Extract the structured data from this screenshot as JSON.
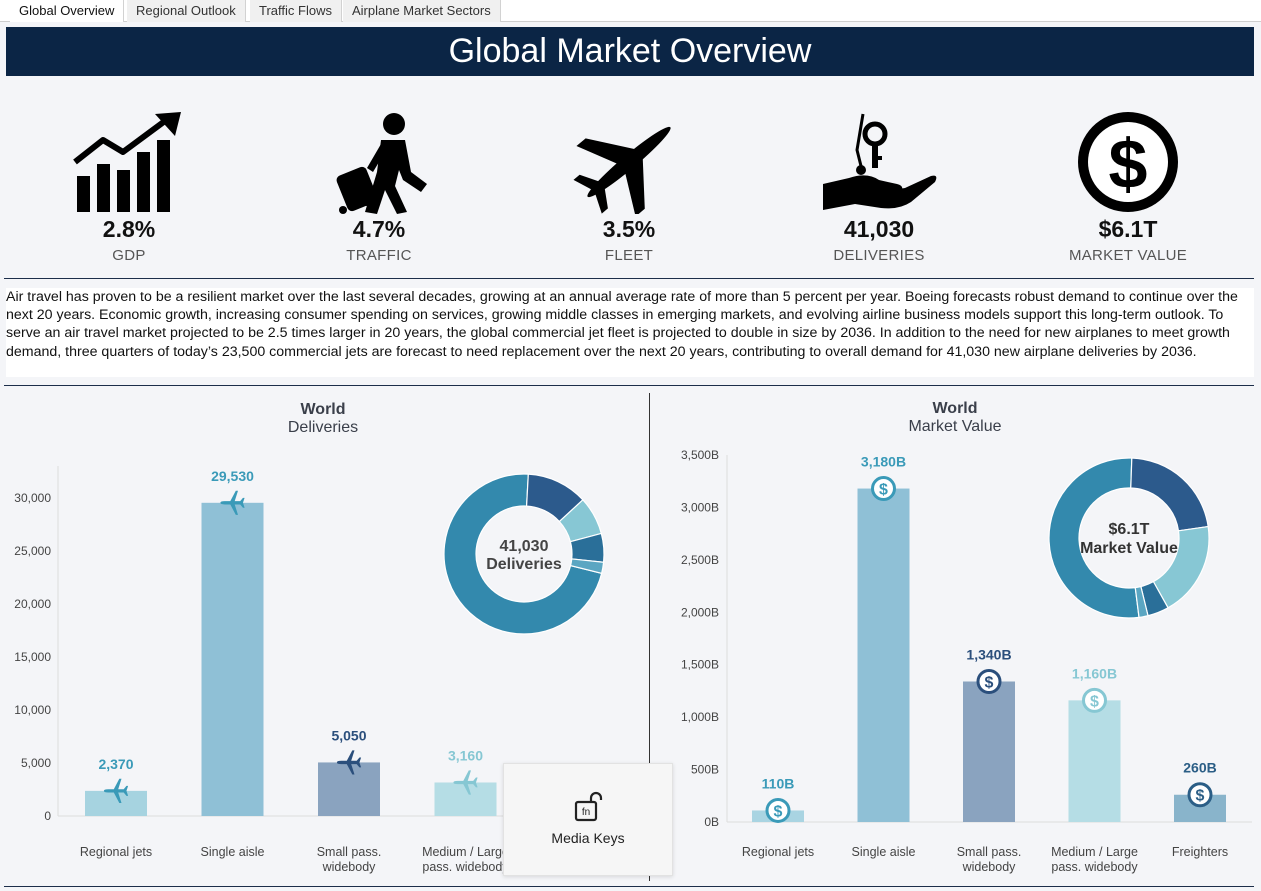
{
  "tabs": [
    "Global Overview",
    "Regional Outlook",
    "Traffic Flows",
    "Airplane Market Sectors"
  ],
  "header": {
    "title": "Global Market Overview"
  },
  "kpis": [
    {
      "icon": "bar-chart-growth-icon",
      "value": "2.8%",
      "label": "GDP"
    },
    {
      "icon": "traveler-luggage-icon",
      "value": "4.7%",
      "label": "TRAFFIC"
    },
    {
      "icon": "airplane-icon",
      "value": "3.5%",
      "label": "FLEET"
    },
    {
      "icon": "hand-key-icon",
      "value": "41,030",
      "label": "DELIVERIES"
    },
    {
      "icon": "dollar-icon",
      "value": "$6.1T",
      "label": "MARKET VALUE"
    }
  ],
  "summary": "Air travel has proven to be a resilient market over the last several decades, growing at an annual average rate of more than 5 percent per year. Boeing forecasts robust demand to continue over the next 20 years. Economic growth, increasing consumer spending on services, growing middle classes in emerging markets, and evolving airline business models support this long-term outlook. To serve an air travel market projected to be 2.5 times larger in 20 years, the global commercial jet fleet is projected to double in size by 2036. In addition to the need for new airplanes to meet growth demand, three quarters of today’s 23,500 commercial jets are forecast to need replacement over the next 20 years, contributing to overall demand for 41,030 new airplane deliveries by 2036.",
  "deliveries_chart": {
    "title": "World",
    "subtitle": "Deliveries",
    "donut_value": "41,030",
    "donut_label": "Deliveries"
  },
  "market_chart": {
    "title": "World",
    "subtitle": "Market Value",
    "donut_value": "$6.1T",
    "donut_label": "Market Value"
  },
  "popup": {
    "label": "Media Keys",
    "icon": "fn-lock-icon"
  },
  "chart_data": [
    {
      "type": "bar",
      "title": "World",
      "subtitle": "Deliveries",
      "categories": [
        "Regional jets",
        "Single aisle",
        "Small pass.|widebody",
        "Medium / Large|pass. widebody"
      ],
      "values": [
        2370,
        29530,
        5050,
        3160
      ],
      "value_labels": [
        "2,370",
        "29,530",
        "5,050",
        "3,160"
      ],
      "ylim": [
        0,
        33000
      ],
      "yticks": [
        0,
        5000,
        10000,
        15000,
        20000,
        25000,
        30000
      ],
      "ytick_labels": [
        "0",
        "5,000",
        "10,000",
        "15,000",
        "20,000",
        "25,000",
        "30,000"
      ],
      "colors": [
        "#a6d3e0",
        "#8fc0d6",
        "#8aa3bf",
        "#b5dde5"
      ],
      "label_colors": [
        "#3a9ab8",
        "#3a9ab8",
        "#2b4f7c",
        "#86c7d3"
      ],
      "grid": false
    },
    {
      "type": "pie",
      "center_label": "41,030 Deliveries",
      "values": [
        29530,
        5050,
        3160,
        2370,
        920
      ],
      "colors": [
        "#3389ad",
        "#2c5a8c",
        "#87c7d4",
        "#2a6f99",
        "#5ba6c2"
      ]
    },
    {
      "type": "bar",
      "title": "World",
      "subtitle": "Market Value",
      "categories": [
        "Regional jets",
        "Single aisle",
        "Small pass.|widebody",
        "Medium / Large|pass. widebody",
        "Freighters"
      ],
      "values": [
        110,
        3180,
        1340,
        1160,
        260
      ],
      "value_labels": [
        "110B",
        "3,180B",
        "1,340B",
        "1,160B",
        "260B"
      ],
      "ylim": [
        0,
        3500
      ],
      "yticks": [
        0,
        500,
        1000,
        1500,
        2000,
        2500,
        3000,
        3500
      ],
      "ytick_labels": [
        "0B",
        "500B",
        "1,000B",
        "1,500B",
        "2,000B",
        "2,500B",
        "3,000B",
        "3,500B"
      ],
      "colors": [
        "#a9d4e2",
        "#8fc0d6",
        "#8aa3bf",
        "#b5dde5",
        "#89b4cb"
      ],
      "label_colors": [
        "#3a9ab8",
        "#3a9ab8",
        "#2b4f7c",
        "#86c7d3",
        "#2b5e86"
      ],
      "grid": false
    },
    {
      "type": "pie",
      "center_label": "$6.1T Market Value",
      "values": [
        3180,
        1340,
        1160,
        260,
        110
      ],
      "colors": [
        "#3389ad",
        "#2c5a8c",
        "#87c7d4",
        "#2a6f99",
        "#5ba6c2"
      ]
    }
  ]
}
